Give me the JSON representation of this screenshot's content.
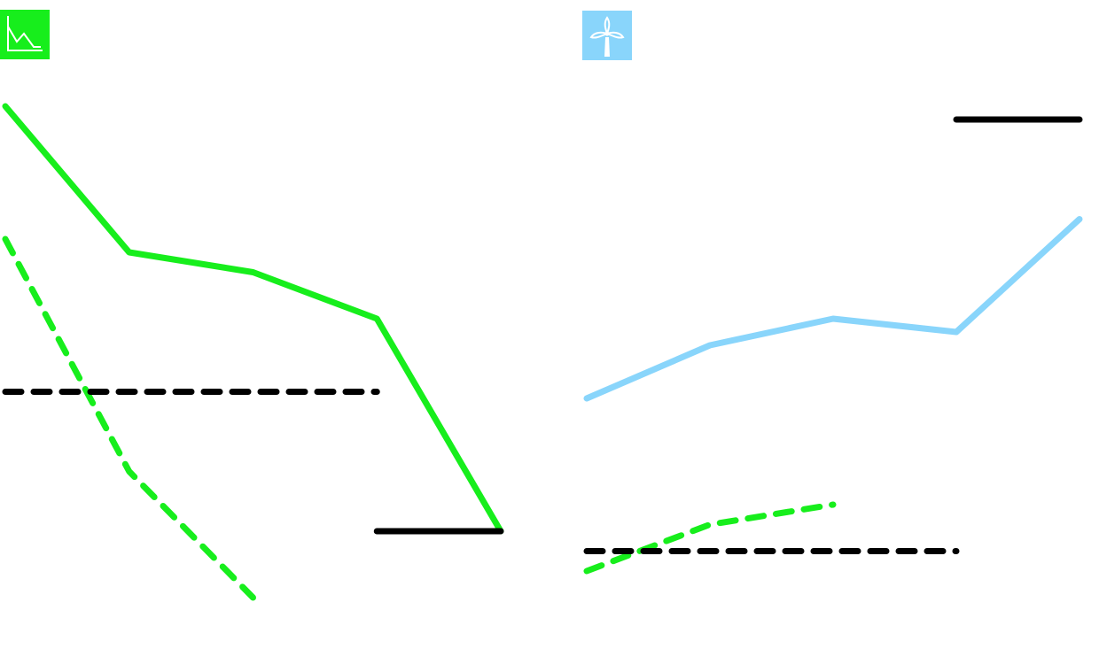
{
  "colors": {
    "green": "#17ee1c",
    "light_blue": "#89d5fb",
    "black": "#000000",
    "background": "#ffffff"
  },
  "icons": {
    "left": "line-chart-icon",
    "right": "wind-turbine-icon"
  },
  "chart_data": [
    {
      "type": "line",
      "title": "",
      "xlabel": "",
      "ylabel": "",
      "x": [
        0,
        1,
        2,
        3,
        4
      ],
      "xlim": [
        0,
        4
      ],
      "ylim": [
        0,
        10
      ],
      "grid": false,
      "series": [
        {
          "style": "solid",
          "color": "#17ee1c",
          "x": [
            0,
            1,
            2,
            3,
            4
          ],
          "values": [
            8.4,
            6.2,
            5.9,
            5.2,
            2.0
          ]
        },
        {
          "style": "dashed",
          "color": "#17ee1c",
          "x": [
            0,
            1,
            2
          ],
          "values": [
            6.4,
            2.9,
            1.0
          ]
        },
        {
          "style": "dashed",
          "color": "#000000",
          "x": [
            0,
            3
          ],
          "values": [
            4.1,
            4.1
          ]
        },
        {
          "style": "solid",
          "color": "#000000",
          "x": [
            3,
            4
          ],
          "values": [
            2.0,
            2.0
          ]
        }
      ]
    },
    {
      "type": "line",
      "title": "",
      "xlabel": "",
      "ylabel": "",
      "x": [
        0,
        1,
        2,
        3,
        4
      ],
      "xlim": [
        0,
        4
      ],
      "ylim": [
        0,
        10
      ],
      "grid": false,
      "series": [
        {
          "style": "solid",
          "color": "#89d5fb",
          "x": [
            0,
            1,
            2,
            3,
            4
          ],
          "values": [
            4.0,
            4.8,
            5.2,
            5.0,
            6.7
          ]
        },
        {
          "style": "dashed",
          "color": "#17ee1c",
          "x": [
            0,
            1,
            2
          ],
          "values": [
            1.4,
            2.1,
            2.4
          ]
        },
        {
          "style": "dashed",
          "color": "#000000",
          "x": [
            0,
            3
          ],
          "values": [
            1.7,
            1.7
          ]
        },
        {
          "style": "solid",
          "color": "#000000",
          "x": [
            3,
            4
          ],
          "values": [
            8.2,
            8.2
          ]
        }
      ]
    }
  ]
}
